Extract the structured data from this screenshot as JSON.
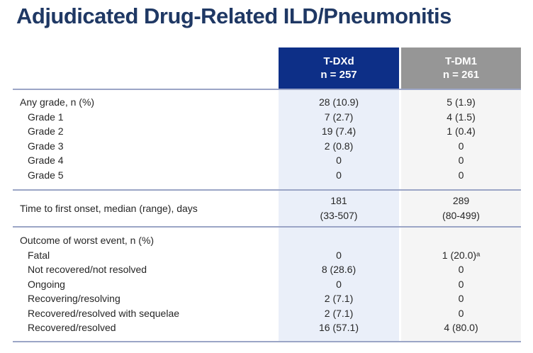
{
  "title": "Adjudicated Drug-Related ILD/Pneumonitis",
  "table": {
    "header": {
      "tdxd": {
        "label": "T-DXd",
        "n": "n = 257"
      },
      "tdm1": {
        "label": "T-DM1",
        "n": "n = 261"
      }
    },
    "grade_section": {
      "rows": [
        {
          "label": "Any grade, n (%)",
          "tdxd": "28 (10.9)",
          "tdm1": "5 (1.9)"
        },
        {
          "label": "Grade 1",
          "tdxd": "7 (2.7)",
          "tdm1": "4 (1.5)"
        },
        {
          "label": "Grade 2",
          "tdxd": "19 (7.4)",
          "tdm1": "1 (0.4)"
        },
        {
          "label": "Grade 3",
          "tdxd": "2 (0.8)",
          "tdm1": "0"
        },
        {
          "label": "Grade 4",
          "tdxd": "0",
          "tdm1": "0"
        },
        {
          "label": "Grade 5",
          "tdxd": "0",
          "tdm1": "0"
        }
      ]
    },
    "onset_section": {
      "label": "Time to first onset, median (range), days",
      "tdxd": [
        "181",
        "(33-507)"
      ],
      "tdm1": [
        "289",
        "(80-499)"
      ]
    },
    "outcome_section": {
      "rows": [
        {
          "label": "Outcome of worst event, n (%)",
          "tdxd": "",
          "tdm1": ""
        },
        {
          "label": "Fatal",
          "tdxd": "0",
          "tdm1": "1 (20.0)ᵃ"
        },
        {
          "label": "Not recovered/not resolved",
          "tdxd": "8 (28.6)",
          "tdm1": "0"
        },
        {
          "label": "Ongoing",
          "tdxd": "0",
          "tdm1": "0"
        },
        {
          "label": "Recovering/resolving",
          "tdxd": "2 (7.1)",
          "tdm1": "0"
        },
        {
          "label": "Recovered/resolved with sequelae",
          "tdxd": "2 (7.1)",
          "tdm1": "0"
        },
        {
          "label": "Recovered/resolved",
          "tdxd": "16 (57.1)",
          "tdm1": "4 (80.0)"
        }
      ]
    }
  },
  "colors": {
    "title_text": "#1f3864",
    "header_tdxd_bg": "#0d2f87",
    "header_tdm1_bg": "#969696",
    "header_text": "#ffffff",
    "column_tdxd_bg": "#eaeff9",
    "column_tdm1_bg": "#f5f5f5",
    "rule_line": "#9ba5c6",
    "body_text": "#262626"
  }
}
